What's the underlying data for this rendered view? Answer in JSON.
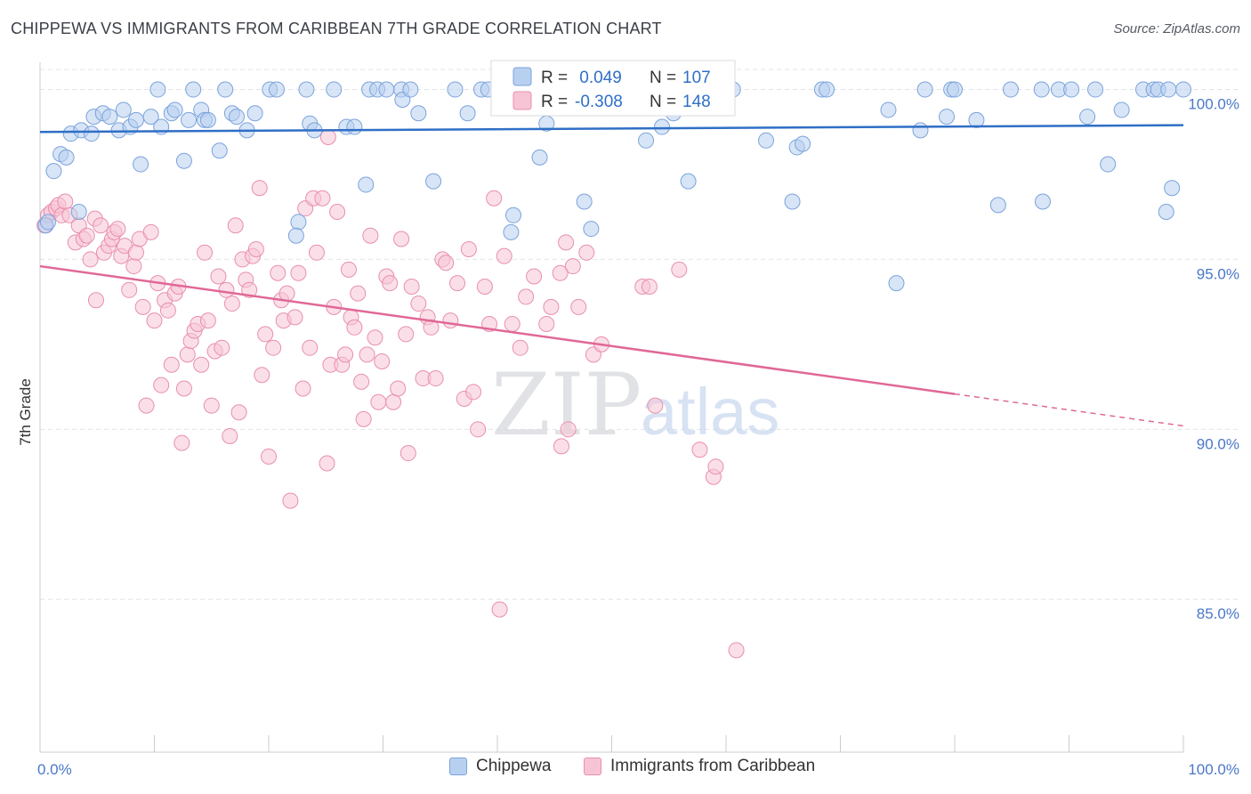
{
  "header": {
    "title": "CHIPPEWA VS IMMIGRANTS FROM CARIBBEAN 7TH GRADE CORRELATION CHART",
    "source": "Source: ZipAtlas.com"
  },
  "watermark": {
    "zip": "ZIP",
    "atlas": "atlas"
  },
  "colors": {
    "blue_fill": "#b8d0f0",
    "blue_stroke": "#7aa3db",
    "blue_line": "#2f6fc6",
    "pink_fill": "#f7c4d5",
    "pink_stroke": "#e88fae",
    "pink_line": "#e06896",
    "value_text": "#2f6fc6"
  },
  "legend": {
    "rows": [
      {
        "r_label": "R =",
        "r_value": " 0.049",
        "n_label": "N =",
        "n_value": "107"
      },
      {
        "r_label": "R =",
        "r_value": "-0.308",
        "n_label": "N =",
        "n_value": "148"
      }
    ]
  },
  "bottom_legend": {
    "series1": "Chippewa",
    "series2": "Immigrants from Caribbean"
  },
  "chart_data": {
    "type": "scatter",
    "title": "CHIPPEWA VS IMMIGRANTS FROM CARIBBEAN 7TH GRADE CORRELATION CHART",
    "xlabel": "",
    "ylabel": "7th Grade",
    "xlim": [
      0,
      100
    ],
    "ylim": [
      80.5,
      100.8
    ],
    "x_tick_labels": [
      "0.0%",
      "100.0%"
    ],
    "y_ticks": [
      85,
      90,
      95,
      100
    ],
    "y_tick_labels": [
      "85.0%",
      "90.0%",
      "95.0%",
      "100.0%"
    ],
    "legend": [
      "Chippewa",
      "Immigrants from Caribbean"
    ],
    "series": [
      {
        "name": "Chippewa",
        "r": 0.049,
        "n": 107,
        "trend": {
          "x": [
            0,
            100
          ],
          "y": [
            98.75,
            98.95
          ],
          "dashed_from": null
        },
        "points": [
          [
            0.5,
            96.0
          ],
          [
            1.2,
            97.6
          ],
          [
            1.8,
            98.1
          ],
          [
            2.3,
            98.0
          ],
          [
            2.7,
            98.7
          ],
          [
            3.4,
            96.4
          ],
          [
            3.6,
            98.8
          ],
          [
            4.5,
            98.7
          ],
          [
            4.7,
            99.2
          ],
          [
            5.5,
            99.3
          ],
          [
            6.1,
            99.2
          ],
          [
            6.9,
            98.8
          ],
          [
            7.3,
            99.4
          ],
          [
            7.9,
            98.9
          ],
          [
            8.4,
            99.1
          ],
          [
            8.8,
            97.8
          ],
          [
            9.7,
            99.2
          ],
          [
            10.3,
            100.0
          ],
          [
            10.6,
            98.9
          ],
          [
            11.5,
            99.3
          ],
          [
            11.8,
            99.4
          ],
          [
            12.6,
            97.9
          ],
          [
            13.0,
            99.1
          ],
          [
            13.4,
            100.0
          ],
          [
            14.1,
            99.4
          ],
          [
            14.4,
            99.1
          ],
          [
            14.7,
            99.1
          ],
          [
            15.7,
            98.2
          ],
          [
            16.2,
            100.0
          ],
          [
            16.8,
            99.3
          ],
          [
            17.2,
            99.2
          ],
          [
            18.1,
            98.8
          ],
          [
            18.8,
            99.3
          ],
          [
            20.1,
            100.0
          ],
          [
            20.7,
            100.0
          ],
          [
            22.6,
            96.1
          ],
          [
            22.4,
            95.7
          ],
          [
            23.3,
            100.0
          ],
          [
            23.6,
            99.0
          ],
          [
            24.0,
            98.8
          ],
          [
            25.7,
            100.0
          ],
          [
            26.8,
            98.9
          ],
          [
            27.5,
            98.9
          ],
          [
            28.5,
            97.2
          ],
          [
            28.8,
            100.0
          ],
          [
            29.5,
            100.0
          ],
          [
            30.3,
            100.0
          ],
          [
            31.6,
            100.0
          ],
          [
            31.7,
            99.7
          ],
          [
            32.4,
            100.0
          ],
          [
            33.1,
            99.3
          ],
          [
            34.4,
            97.3
          ],
          [
            36.3,
            100.0
          ],
          [
            37.4,
            99.3
          ],
          [
            38.6,
            100.0
          ],
          [
            39.2,
            100.0
          ],
          [
            40.2,
            100.0
          ],
          [
            41.2,
            95.8
          ],
          [
            41.4,
            96.3
          ],
          [
            43.7,
            98.0
          ],
          [
            44.3,
            99.0
          ],
          [
            45.2,
            100.0
          ],
          [
            46.1,
            100.0
          ],
          [
            47.6,
            96.7
          ],
          [
            48.2,
            95.9
          ],
          [
            50.2,
            100.0
          ],
          [
            51.1,
            100.0
          ],
          [
            53.3,
            100.0
          ],
          [
            53.0,
            98.5
          ],
          [
            54.4,
            98.9
          ],
          [
            55.4,
            99.3
          ],
          [
            56.7,
            97.3
          ],
          [
            58.0,
            100.0
          ],
          [
            58.7,
            100.0
          ],
          [
            60.6,
            100.0
          ],
          [
            63.5,
            98.5
          ],
          [
            65.8,
            96.7
          ],
          [
            66.2,
            98.3
          ],
          [
            66.7,
            98.4
          ],
          [
            68.4,
            100.0
          ],
          [
            68.8,
            100.0
          ],
          [
            74.2,
            99.4
          ],
          [
            74.9,
            94.3
          ],
          [
            77.0,
            98.8
          ],
          [
            77.4,
            100.0
          ],
          [
            79.3,
            99.2
          ],
          [
            79.7,
            100.0
          ],
          [
            80.0,
            100.0
          ],
          [
            81.9,
            99.1
          ],
          [
            83.8,
            96.6
          ],
          [
            84.9,
            100.0
          ],
          [
            87.6,
            100.0
          ],
          [
            87.7,
            96.7
          ],
          [
            89.1,
            100.0
          ],
          [
            90.2,
            100.0
          ],
          [
            91.6,
            99.2
          ],
          [
            92.3,
            100.0
          ],
          [
            93.4,
            97.8
          ],
          [
            94.6,
            99.4
          ],
          [
            96.5,
            100.0
          ],
          [
            97.4,
            100.0
          ],
          [
            97.8,
            100.0
          ],
          [
            98.7,
            100.0
          ],
          [
            99.0,
            97.1
          ],
          [
            98.5,
            96.4
          ],
          [
            100.0,
            100.0
          ],
          [
            0.7,
            96.1
          ]
        ]
      },
      {
        "name": "Immigrants from Caribbean",
        "r": -0.308,
        "n": 148,
        "trend": {
          "x": [
            0,
            100
          ],
          "y": [
            94.8,
            90.1
          ],
          "dashed_from": 80
        },
        "points": [
          [
            0.4,
            96.0
          ],
          [
            0.7,
            96.3
          ],
          [
            1.0,
            96.4
          ],
          [
            1.4,
            96.5
          ],
          [
            1.6,
            96.6
          ],
          [
            1.9,
            96.3
          ],
          [
            2.2,
            96.7
          ],
          [
            2.6,
            96.3
          ],
          [
            3.1,
            95.5
          ],
          [
            3.4,
            96.0
          ],
          [
            3.8,
            95.6
          ],
          [
            4.1,
            95.7
          ],
          [
            4.4,
            95.0
          ],
          [
            4.8,
            96.2
          ],
          [
            4.9,
            93.8
          ],
          [
            5.3,
            96.0
          ],
          [
            5.6,
            95.2
          ],
          [
            6.0,
            95.4
          ],
          [
            6.3,
            95.6
          ],
          [
            6.5,
            95.8
          ],
          [
            6.8,
            95.9
          ],
          [
            7.1,
            95.1
          ],
          [
            7.4,
            95.4
          ],
          [
            7.8,
            94.1
          ],
          [
            8.2,
            94.8
          ],
          [
            8.4,
            95.2
          ],
          [
            8.7,
            95.6
          ],
          [
            9.0,
            93.6
          ],
          [
            9.3,
            90.7
          ],
          [
            9.7,
            95.8
          ],
          [
            10.0,
            93.2
          ],
          [
            10.3,
            94.3
          ],
          [
            10.6,
            91.3
          ],
          [
            10.9,
            93.8
          ],
          [
            11.2,
            93.5
          ],
          [
            11.5,
            91.9
          ],
          [
            11.8,
            94.0
          ],
          [
            12.1,
            94.2
          ],
          [
            12.4,
            89.6
          ],
          [
            12.6,
            91.2
          ],
          [
            12.9,
            92.2
          ],
          [
            13.2,
            92.6
          ],
          [
            13.5,
            92.9
          ],
          [
            13.8,
            93.1
          ],
          [
            14.1,
            91.9
          ],
          [
            14.4,
            95.2
          ],
          [
            14.7,
            93.2
          ],
          [
            15.0,
            90.7
          ],
          [
            15.3,
            92.3
          ],
          [
            15.6,
            94.5
          ],
          [
            15.9,
            92.4
          ],
          [
            16.3,
            94.1
          ],
          [
            16.6,
            89.8
          ],
          [
            16.8,
            93.7
          ],
          [
            17.1,
            96.0
          ],
          [
            17.4,
            90.5
          ],
          [
            17.7,
            95.0
          ],
          [
            18.0,
            94.4
          ],
          [
            18.3,
            94.1
          ],
          [
            18.6,
            95.1
          ],
          [
            18.9,
            95.3
          ],
          [
            19.2,
            97.1
          ],
          [
            19.4,
            91.6
          ],
          [
            19.7,
            92.8
          ],
          [
            20.0,
            89.2
          ],
          [
            20.4,
            92.4
          ],
          [
            20.8,
            94.6
          ],
          [
            21.1,
            93.8
          ],
          [
            21.3,
            93.2
          ],
          [
            21.6,
            94.0
          ],
          [
            21.9,
            87.9
          ],
          [
            22.3,
            93.3
          ],
          [
            22.6,
            94.6
          ],
          [
            23.0,
            91.2
          ],
          [
            23.2,
            96.5
          ],
          [
            23.6,
            92.4
          ],
          [
            23.9,
            96.8
          ],
          [
            24.2,
            95.2
          ],
          [
            24.7,
            96.8
          ],
          [
            25.1,
            89.0
          ],
          [
            25.4,
            91.9
          ],
          [
            25.7,
            93.6
          ],
          [
            26.0,
            96.4
          ],
          [
            26.4,
            91.9
          ],
          [
            26.7,
            92.2
          ],
          [
            27.0,
            94.7
          ],
          [
            27.2,
            93.3
          ],
          [
            27.5,
            93.0
          ],
          [
            27.8,
            94.0
          ],
          [
            28.1,
            91.4
          ],
          [
            28.3,
            90.3
          ],
          [
            28.6,
            92.2
          ],
          [
            28.9,
            95.7
          ],
          [
            29.3,
            92.7
          ],
          [
            29.6,
            90.8
          ],
          [
            29.9,
            92.0
          ],
          [
            30.3,
            94.5
          ],
          [
            30.6,
            94.3
          ],
          [
            30.9,
            90.8
          ],
          [
            31.3,
            91.2
          ],
          [
            31.6,
            95.6
          ],
          [
            32.0,
            92.8
          ],
          [
            32.2,
            89.3
          ],
          [
            32.5,
            94.2
          ],
          [
            33.1,
            93.7
          ],
          [
            33.5,
            91.5
          ],
          [
            33.9,
            93.3
          ],
          [
            34.2,
            93.0
          ],
          [
            34.6,
            91.5
          ],
          [
            35.2,
            95.0
          ],
          [
            35.5,
            94.9
          ],
          [
            35.9,
            93.2
          ],
          [
            36.5,
            94.3
          ],
          [
            37.1,
            90.9
          ],
          [
            37.5,
            95.3
          ],
          [
            37.9,
            91.1
          ],
          [
            38.3,
            90.0
          ],
          [
            38.9,
            94.2
          ],
          [
            39.3,
            93.1
          ],
          [
            39.7,
            96.8
          ],
          [
            40.2,
            84.7
          ],
          [
            40.6,
            95.1
          ],
          [
            41.3,
            93.1
          ],
          [
            42.0,
            92.4
          ],
          [
            42.5,
            93.9
          ],
          [
            43.2,
            94.5
          ],
          [
            44.3,
            93.1
          ],
          [
            44.7,
            93.6
          ],
          [
            45.5,
            94.6
          ],
          [
            45.6,
            89.5
          ],
          [
            46.0,
            95.5
          ],
          [
            46.2,
            90.0
          ],
          [
            46.6,
            94.8
          ],
          [
            47.1,
            93.6
          ],
          [
            47.8,
            95.2
          ],
          [
            48.4,
            92.2
          ],
          [
            49.1,
            92.5
          ],
          [
            52.7,
            94.2
          ],
          [
            53.3,
            94.2
          ],
          [
            53.8,
            90.7
          ],
          [
            55.9,
            94.7
          ],
          [
            57.7,
            89.4
          ],
          [
            58.9,
            88.6
          ],
          [
            59.1,
            88.9
          ],
          [
            60.9,
            83.5
          ],
          [
            25.2,
            98.6
          ]
        ]
      }
    ]
  }
}
